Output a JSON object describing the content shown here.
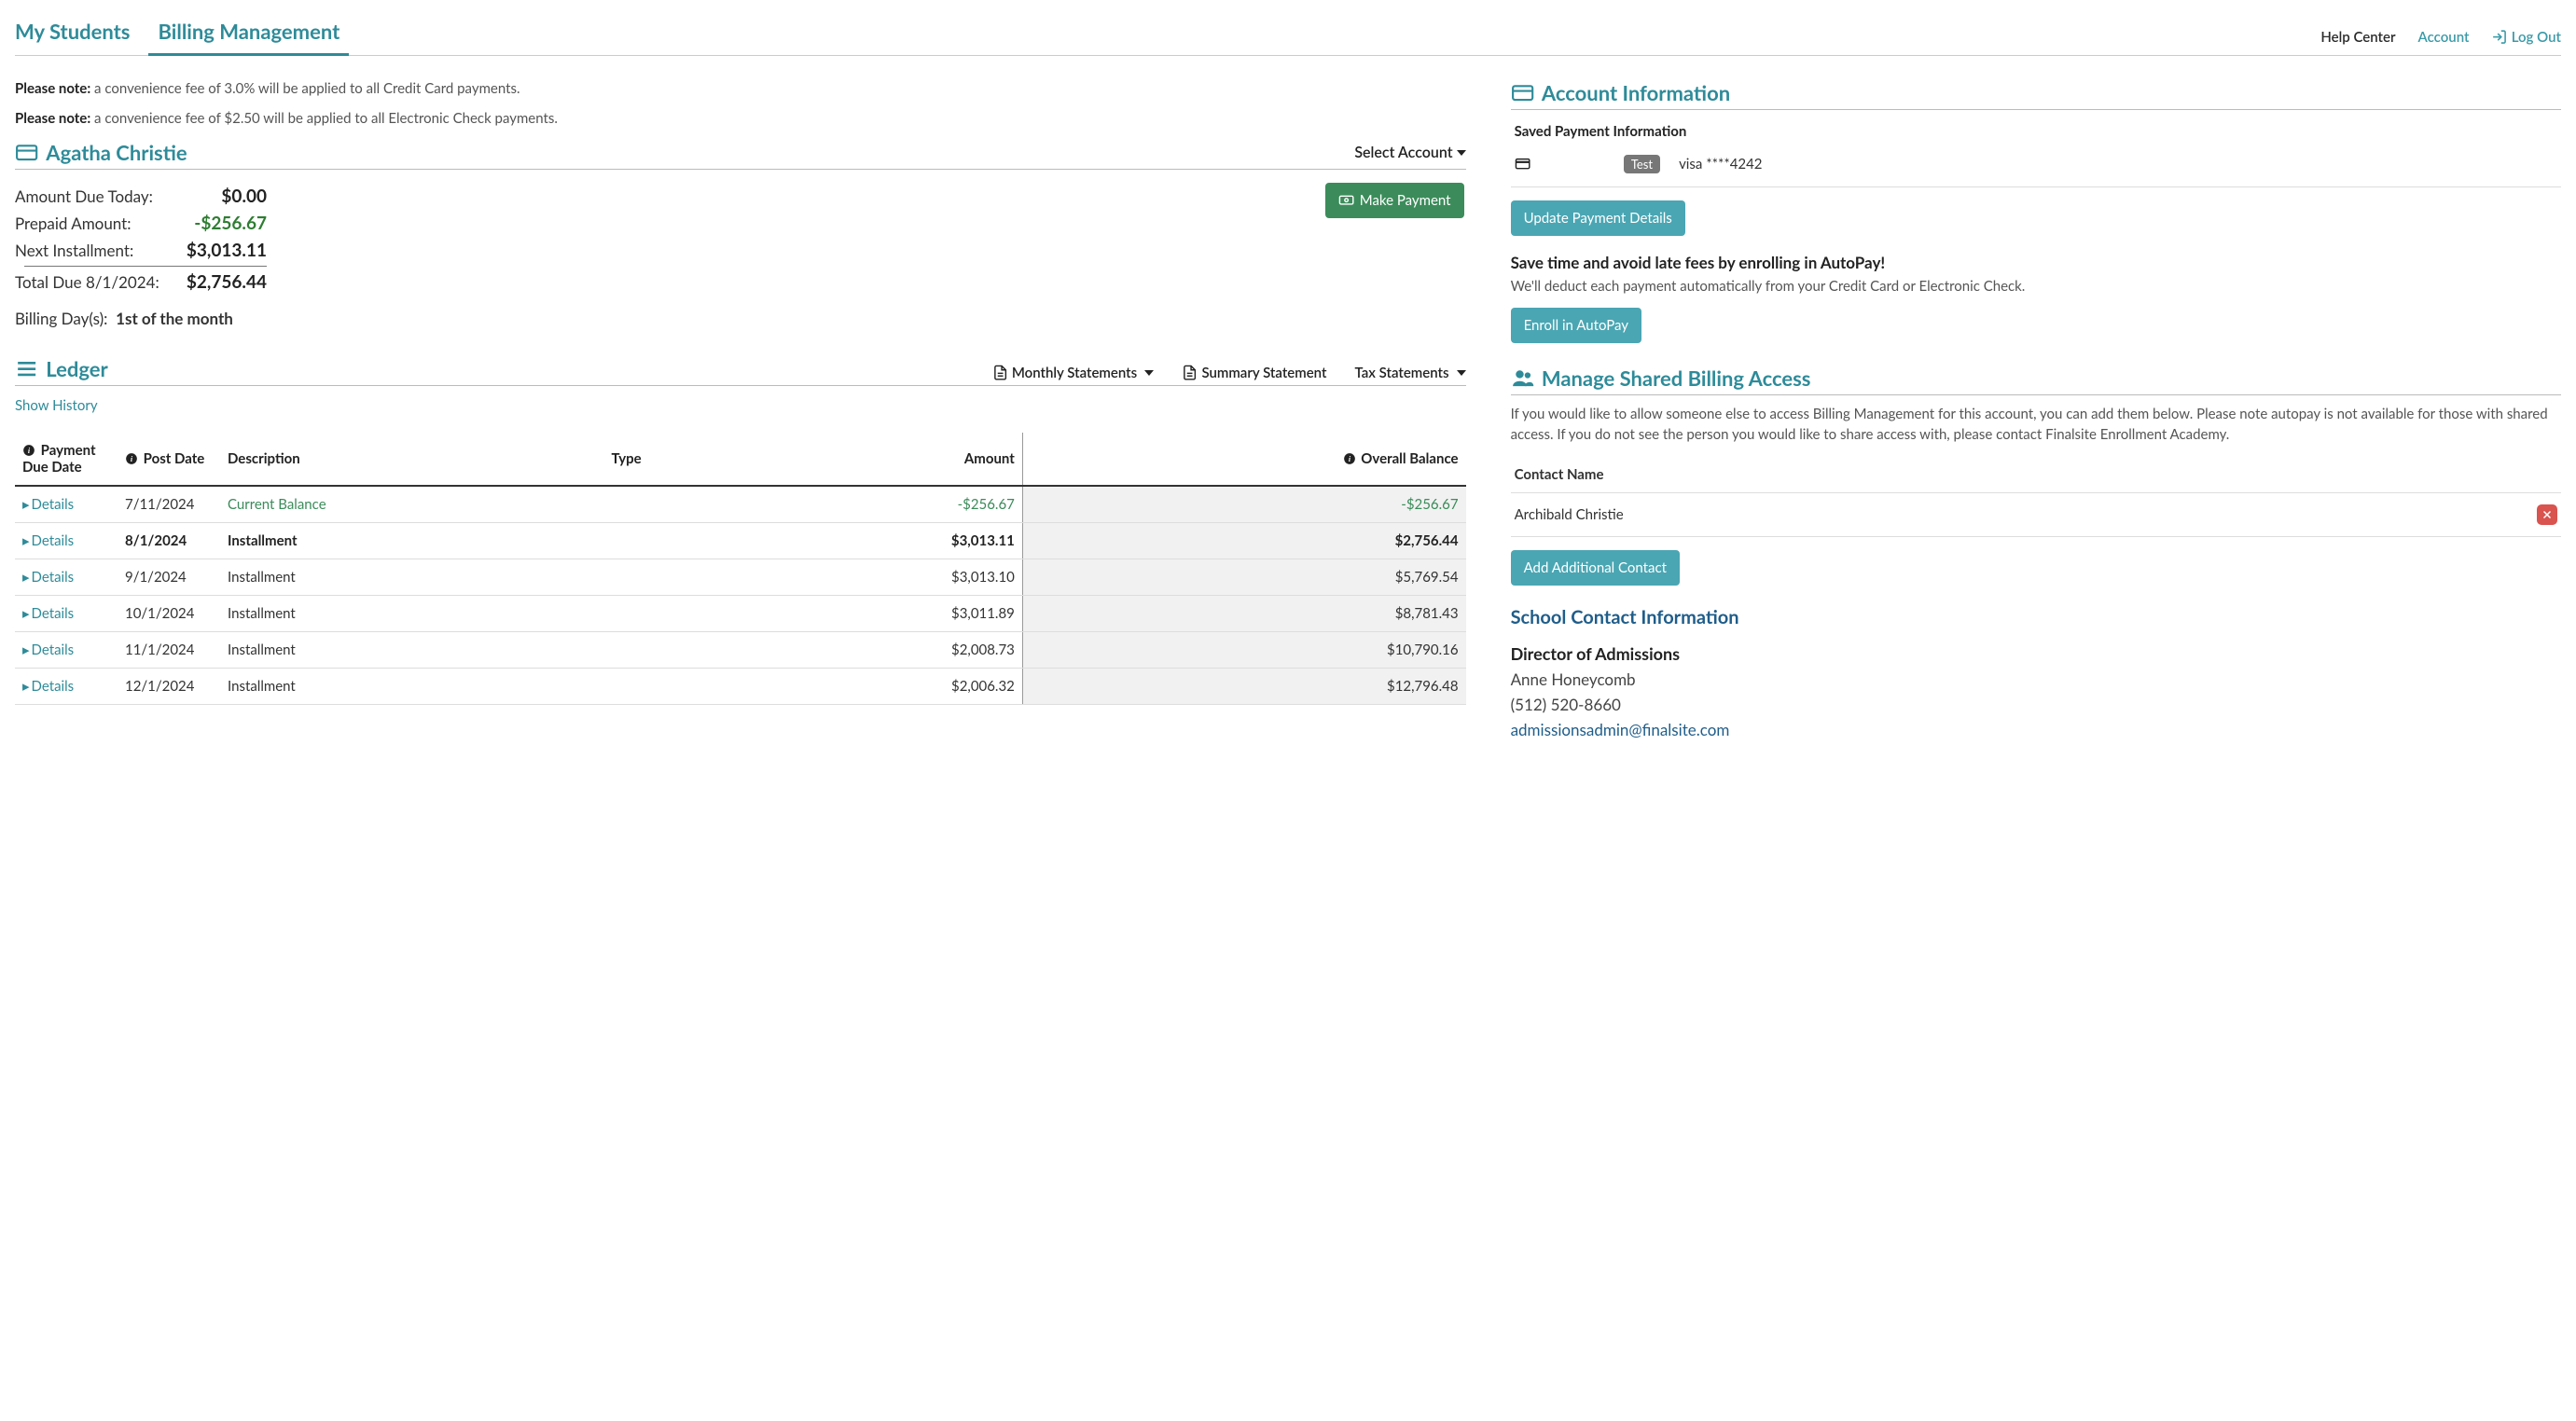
{
  "nav": {
    "tabs": [
      {
        "label": "My Students",
        "active": false
      },
      {
        "label": "Billing Management",
        "active": true
      }
    ],
    "help_center": "Help Center",
    "account": "Account",
    "logout": "Log Out"
  },
  "notes": {
    "prefix": "Please note:",
    "cc": "a convenience fee of 3.0% will be applied to all Credit Card payments.",
    "echeck": "a convenience fee of $2.50 will be applied to all Electronic Check payments."
  },
  "student": {
    "name": "Agatha Christie",
    "select_account": "Select Account"
  },
  "amounts": {
    "due_today_label": "Amount Due Today:",
    "due_today": "$0.00",
    "prepaid_label": "Prepaid Amount:",
    "prepaid": "-$256.67",
    "next_label": "Next Installment:",
    "next": "$3,013.11",
    "total_label": "Total Due 8/1/2024:",
    "total": "$2,756.44",
    "make_payment": "Make Payment"
  },
  "billing_days": {
    "label": "Billing Day(s):",
    "value": "1st of the month"
  },
  "ledger": {
    "title": "Ledger",
    "monthly": "Monthly Statements",
    "summary": "Summary Statement",
    "tax": "Tax Statements",
    "show_history": "Show History",
    "columns": {
      "payment_due": "Payment Due Date",
      "post_date": "Post Date",
      "description": "Description",
      "type": "Type",
      "amount": "Amount",
      "balance": "Overall Balance"
    },
    "details_label": "Details",
    "rows": [
      {
        "due": "7/11/2024",
        "post": "",
        "desc": "Current Balance",
        "type": "",
        "amount": "-$256.67",
        "balance": "-$256.67",
        "kind": "current"
      },
      {
        "due": "8/1/2024",
        "post": "",
        "desc": "Installment",
        "type": "",
        "amount": "$3,013.11",
        "balance": "$2,756.44",
        "kind": "bold"
      },
      {
        "due": "9/1/2024",
        "post": "",
        "desc": "Installment",
        "type": "",
        "amount": "$3,013.10",
        "balance": "$5,769.54",
        "kind": ""
      },
      {
        "due": "10/1/2024",
        "post": "",
        "desc": "Installment",
        "type": "",
        "amount": "$3,011.89",
        "balance": "$8,781.43",
        "kind": ""
      },
      {
        "due": "11/1/2024",
        "post": "",
        "desc": "Installment",
        "type": "",
        "amount": "$2,008.73",
        "balance": "$10,790.16",
        "kind": ""
      },
      {
        "due": "12/1/2024",
        "post": "",
        "desc": "Installment",
        "type": "",
        "amount": "$2,006.32",
        "balance": "$12,796.48",
        "kind": ""
      }
    ]
  },
  "account_info": {
    "title": "Account Information",
    "saved_title": "Saved Payment Information",
    "test_badge": "Test",
    "card": "visa ****4242",
    "update_btn": "Update Payment Details",
    "autopay_title": "Save time and avoid late fees by enrolling in AutoPay!",
    "autopay_desc": "We'll deduct each payment automatically from your Credit Card or Electronic Check.",
    "enroll_btn": "Enroll in AutoPay"
  },
  "shared": {
    "title": "Manage Shared Billing Access",
    "desc": "If you would like to allow someone else to access Billing Management for this account, you can add them below. Please note autopay is not available for those with shared access. If you do not see the person you would like to share access with, please contact Finalsite Enrollment Academy.",
    "contact_header": "Contact Name",
    "contact_name": "Archibald Christie",
    "add_btn": "Add Additional Contact"
  },
  "school": {
    "title": "School Contact Information",
    "role": "Director of Admissions",
    "name": "Anne Honeycomb",
    "phone": "(512) 520-8660",
    "email": "admissionsadmin@finalsite.com"
  },
  "colors": {
    "teal": "#2e8b99",
    "btn_teal": "#4aa6b3",
    "green": "#3b8c5a",
    "text_green": "#2e7d32",
    "link_blue": "#1f5d8a",
    "badge_gray": "#777777",
    "danger": "#d9534f"
  }
}
